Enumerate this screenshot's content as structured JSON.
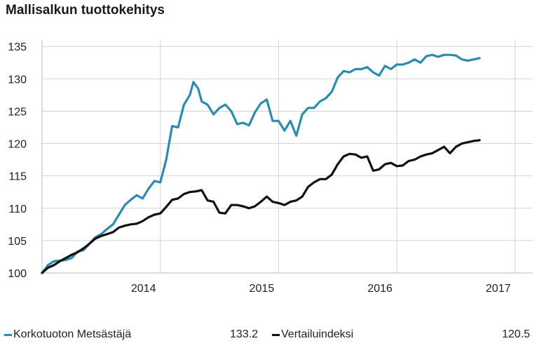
{
  "chart_data": {
    "type": "line",
    "title": "Mallisalkun tuottokehitys",
    "xlabel": "",
    "ylabel": "",
    "x_ticks": [
      "2014",
      "2015",
      "2016",
      "2017"
    ],
    "y_ticks": [
      100,
      105,
      110,
      115,
      120,
      125,
      130,
      135
    ],
    "ylim": [
      100,
      136
    ],
    "xlim": [
      2013.0,
      2017.15
    ],
    "grid": true,
    "legend_position": "bottom",
    "series": [
      {
        "name": "Korkotuoton Metsästäjä",
        "color": "#2b8caf",
        "last_value": "133.2",
        "points": [
          [
            2013.0,
            100.0
          ],
          [
            2013.05,
            101.2
          ],
          [
            2013.1,
            101.8
          ],
          [
            2013.15,
            101.9
          ],
          [
            2013.2,
            102.0
          ],
          [
            2013.25,
            102.3
          ],
          [
            2013.3,
            103.3
          ],
          [
            2013.35,
            103.5
          ],
          [
            2013.4,
            104.5
          ],
          [
            2013.45,
            105.5
          ],
          [
            2013.5,
            106.0
          ],
          [
            2013.55,
            106.8
          ],
          [
            2013.6,
            107.5
          ],
          [
            2013.65,
            109.0
          ],
          [
            2013.7,
            110.5
          ],
          [
            2013.75,
            111.3
          ],
          [
            2013.8,
            112.0
          ],
          [
            2013.85,
            111.5
          ],
          [
            2013.9,
            113.0
          ],
          [
            2013.95,
            114.2
          ],
          [
            2014.0,
            114.0
          ],
          [
            2014.05,
            117.5
          ],
          [
            2014.1,
            122.7
          ],
          [
            2014.15,
            122.5
          ],
          [
            2014.2,
            126.0
          ],
          [
            2014.25,
            127.5
          ],
          [
            2014.28,
            129.5
          ],
          [
            2014.32,
            128.5
          ],
          [
            2014.35,
            126.5
          ],
          [
            2014.4,
            126.0
          ],
          [
            2014.45,
            124.5
          ],
          [
            2014.5,
            125.5
          ],
          [
            2014.55,
            126.0
          ],
          [
            2014.6,
            125.0
          ],
          [
            2014.65,
            123.0
          ],
          [
            2014.7,
            123.2
          ],
          [
            2014.75,
            122.8
          ],
          [
            2014.8,
            124.8
          ],
          [
            2014.85,
            126.2
          ],
          [
            2014.9,
            126.8
          ],
          [
            2014.95,
            123.5
          ],
          [
            2015.0,
            123.5
          ],
          [
            2015.05,
            122.0
          ],
          [
            2015.1,
            123.5
          ],
          [
            2015.15,
            121.2
          ],
          [
            2015.2,
            124.5
          ],
          [
            2015.25,
            125.5
          ],
          [
            2015.3,
            125.5
          ],
          [
            2015.35,
            126.5
          ],
          [
            2015.4,
            127.0
          ],
          [
            2015.45,
            128.0
          ],
          [
            2015.5,
            130.2
          ],
          [
            2015.55,
            131.2
          ],
          [
            2015.6,
            131.0
          ],
          [
            2015.65,
            131.5
          ],
          [
            2015.7,
            131.5
          ],
          [
            2015.75,
            131.8
          ],
          [
            2015.8,
            131.0
          ],
          [
            2015.85,
            130.5
          ],
          [
            2015.9,
            132.0
          ],
          [
            2015.95,
            131.5
          ],
          [
            2016.0,
            132.2
          ],
          [
            2016.05,
            132.2
          ],
          [
            2016.1,
            132.5
          ],
          [
            2016.15,
            133.0
          ],
          [
            2016.2,
            132.5
          ],
          [
            2016.25,
            133.5
          ],
          [
            2016.3,
            133.7
          ],
          [
            2016.35,
            133.4
          ],
          [
            2016.4,
            133.7
          ],
          [
            2016.45,
            133.7
          ],
          [
            2016.5,
            133.6
          ],
          [
            2016.55,
            133.0
          ],
          [
            2016.6,
            132.8
          ],
          [
            2016.65,
            133.0
          ],
          [
            2016.7,
            133.2
          ]
        ]
      },
      {
        "name": "Vertailuindeksi",
        "color": "#111111",
        "last_value": "120.5",
        "points": [
          [
            2013.0,
            100.0
          ],
          [
            2013.05,
            100.8
          ],
          [
            2013.1,
            101.2
          ],
          [
            2013.15,
            101.8
          ],
          [
            2013.2,
            102.3
          ],
          [
            2013.25,
            102.8
          ],
          [
            2013.3,
            103.2
          ],
          [
            2013.35,
            103.8
          ],
          [
            2013.4,
            104.5
          ],
          [
            2013.45,
            105.3
          ],
          [
            2013.5,
            105.7
          ],
          [
            2013.55,
            106.0
          ],
          [
            2013.6,
            106.3
          ],
          [
            2013.65,
            107.0
          ],
          [
            2013.7,
            107.3
          ],
          [
            2013.75,
            107.5
          ],
          [
            2013.8,
            107.6
          ],
          [
            2013.85,
            108.0
          ],
          [
            2013.9,
            108.6
          ],
          [
            2013.95,
            109.0
          ],
          [
            2014.0,
            109.2
          ],
          [
            2014.05,
            110.2
          ],
          [
            2014.1,
            111.3
          ],
          [
            2014.15,
            111.5
          ],
          [
            2014.2,
            112.2
          ],
          [
            2014.25,
            112.5
          ],
          [
            2014.3,
            112.6
          ],
          [
            2014.35,
            112.8
          ],
          [
            2014.4,
            111.2
          ],
          [
            2014.45,
            111.0
          ],
          [
            2014.5,
            109.3
          ],
          [
            2014.55,
            109.2
          ],
          [
            2014.6,
            110.5
          ],
          [
            2014.65,
            110.5
          ],
          [
            2014.7,
            110.3
          ],
          [
            2014.75,
            110.0
          ],
          [
            2014.8,
            110.3
          ],
          [
            2014.85,
            111.0
          ],
          [
            2014.9,
            111.8
          ],
          [
            2014.95,
            111.0
          ],
          [
            2015.0,
            110.8
          ],
          [
            2015.05,
            110.5
          ],
          [
            2015.1,
            111.0
          ],
          [
            2015.15,
            111.2
          ],
          [
            2015.2,
            111.8
          ],
          [
            2015.25,
            113.3
          ],
          [
            2015.3,
            114.0
          ],
          [
            2015.35,
            114.5
          ],
          [
            2015.4,
            114.5
          ],
          [
            2015.45,
            115.2
          ],
          [
            2015.5,
            116.8
          ],
          [
            2015.55,
            118.0
          ],
          [
            2015.6,
            118.4
          ],
          [
            2015.65,
            118.3
          ],
          [
            2015.7,
            117.8
          ],
          [
            2015.75,
            118.0
          ],
          [
            2015.8,
            115.8
          ],
          [
            2015.85,
            116.0
          ],
          [
            2015.9,
            116.8
          ],
          [
            2015.95,
            117.0
          ],
          [
            2016.0,
            116.5
          ],
          [
            2016.05,
            116.6
          ],
          [
            2016.1,
            117.3
          ],
          [
            2016.15,
            117.5
          ],
          [
            2016.2,
            118.0
          ],
          [
            2016.25,
            118.3
          ],
          [
            2016.3,
            118.5
          ],
          [
            2016.35,
            119.0
          ],
          [
            2016.4,
            119.5
          ],
          [
            2016.45,
            118.5
          ],
          [
            2016.5,
            119.5
          ],
          [
            2016.55,
            120.0
          ],
          [
            2016.6,
            120.2
          ],
          [
            2016.65,
            120.4
          ],
          [
            2016.7,
            120.5
          ]
        ]
      }
    ]
  }
}
